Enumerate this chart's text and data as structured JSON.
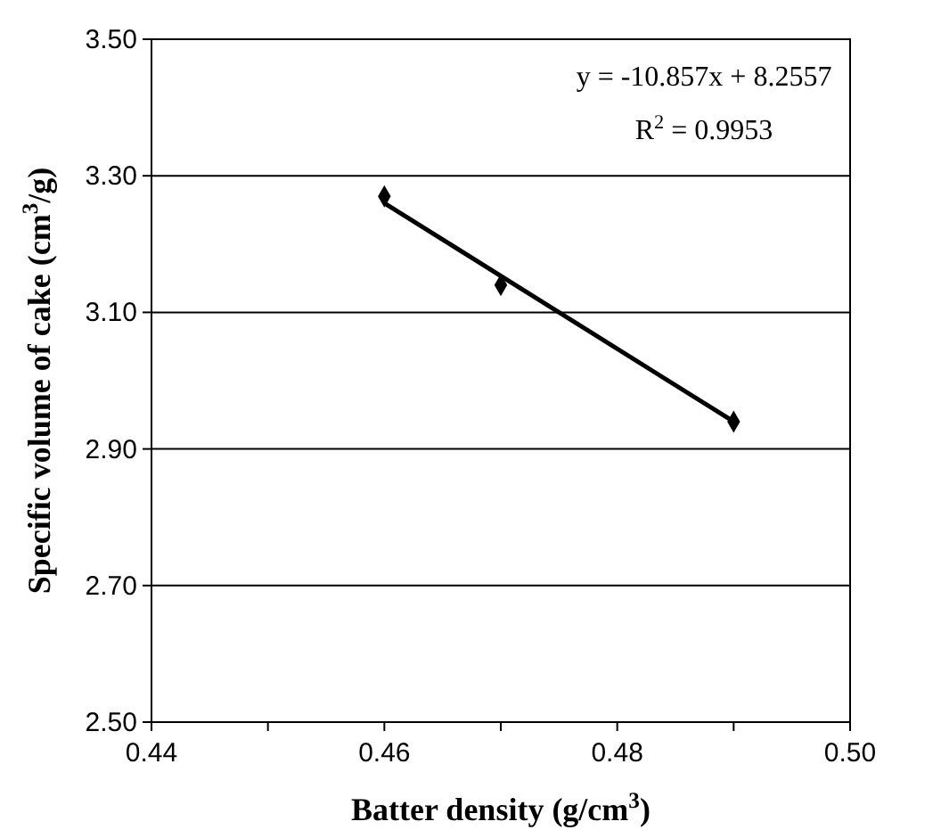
{
  "chart_data": {
    "type": "scatter",
    "xlabel": "Batter density (g/cm$^{3}$)",
    "ylabel": "Specific volume of cake (cm$^{3}$/g)",
    "annotations": [
      "y = -10.857x + 8.2557",
      "R$^{2}$ = 0.9953"
    ],
    "xlim": [
      0.44,
      0.5
    ],
    "xticks": [
      0.44,
      {
        "value": 0.45,
        "label": null
      },
      0.46,
      {
        "value": 0.47,
        "label": null
      },
      0.48,
      {
        "value": 0.49,
        "label": null
      },
      {
        "value": 0.5,
        "label": "0.50"
      }
    ],
    "ylim": [
      2.5,
      3.5
    ],
    "yticks": [
      {
        "value": 2.5,
        "label": "2.50"
      },
      {
        "value": 2.7,
        "label": "2.70"
      },
      {
        "value": 2.9,
        "label": "2.90"
      },
      {
        "value": 3.1,
        "label": "3.10"
      },
      {
        "value": 3.3,
        "label": "3.30"
      },
      {
        "value": 3.5,
        "label": "3.50"
      }
    ],
    "grid": "y",
    "series": [
      {
        "color": "#000000",
        "marker": "diamond",
        "x": [
          0.46,
          0.47,
          0.49
        ],
        "values": [
          3.27,
          3.14,
          2.94
        ]
      },
      {
        "type": "line",
        "color": "#000000",
        "marker": "none",
        "line_style": "solid",
        "x": [
          0.46,
          0.49
        ],
        "values": [
          3.26,
          2.94
        ]
      }
    ]
  }
}
